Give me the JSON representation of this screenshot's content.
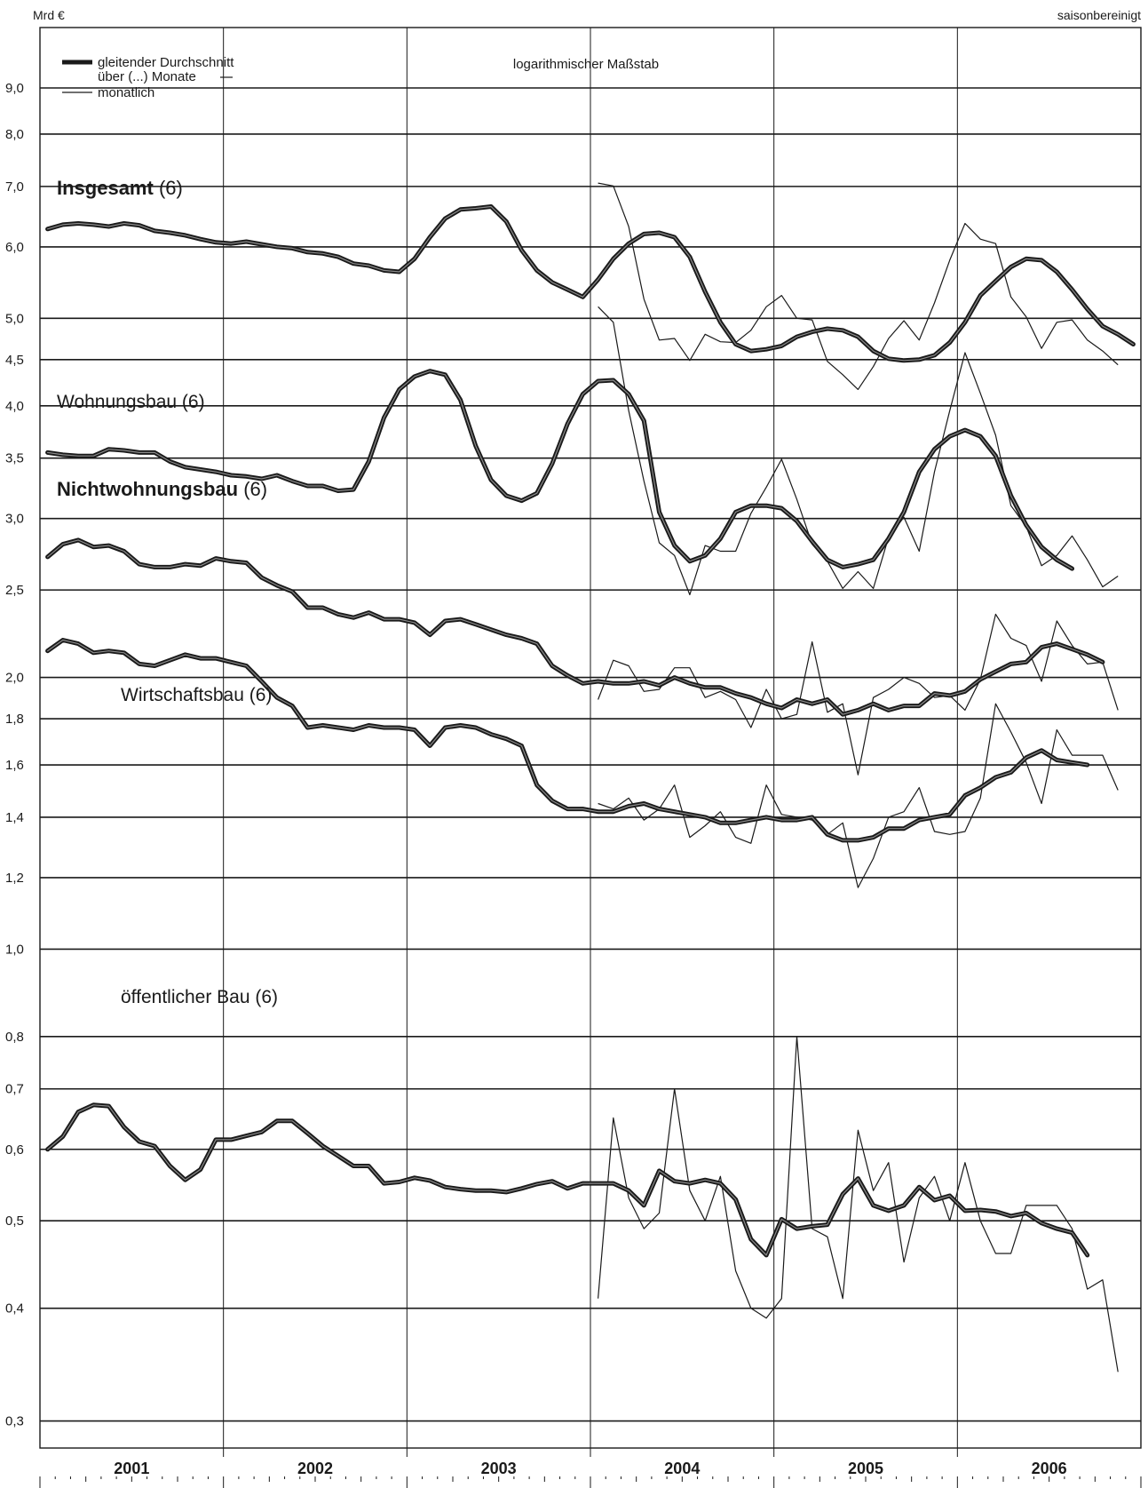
{
  "chart_data": {
    "type": "line",
    "y_unit_label": "Mrd €",
    "top_right_label": "saisonbereinigt",
    "scale_note": "logarithmischer Maßstab",
    "yscale": "log",
    "ylim": [
      0.28,
      10.5
    ],
    "y_ticks": [
      {
        "value": 0.3,
        "label": "0,3"
      },
      {
        "value": 0.4,
        "label": "0,4"
      },
      {
        "value": 0.5,
        "label": "0,5"
      },
      {
        "value": 0.6,
        "label": "0,6"
      },
      {
        "value": 0.7,
        "label": "0,7"
      },
      {
        "value": 0.8,
        "label": "0,8"
      },
      {
        "value": 1.0,
        "label": "1,0"
      },
      {
        "value": 1.2,
        "label": "1,2"
      },
      {
        "value": 1.4,
        "label": "1,4"
      },
      {
        "value": 1.6,
        "label": "1,6"
      },
      {
        "value": 1.8,
        "label": "1,8"
      },
      {
        "value": 2.0,
        "label": "2,0"
      },
      {
        "value": 2.5,
        "label": "2,5"
      },
      {
        "value": 3.0,
        "label": "3,0"
      },
      {
        "value": 3.5,
        "label": "3,5"
      },
      {
        "value": 4.0,
        "label": "4,0"
      },
      {
        "value": 4.5,
        "label": "4,5"
      },
      {
        "value": 5.0,
        "label": "5,0"
      },
      {
        "value": 6.0,
        "label": "6,0"
      },
      {
        "value": 7.0,
        "label": "7,0"
      },
      {
        "value": 8.0,
        "label": "8,0"
      },
      {
        "value": 9.0,
        "label": "9,0"
      }
    ],
    "years": [
      "2001",
      "2002",
      "2003",
      "2004",
      "2005",
      "2006"
    ],
    "x_start": "2001-01",
    "x_end": "2006-12",
    "legend": {
      "avg_line1": "gleitender Durchschnitt",
      "avg_line2": "über (...) Monate",
      "monthly": "monatlich"
    },
    "series": [
      {
        "name": "Insgesamt",
        "name_suffix": "(6)",
        "label_bold": true,
        "moving_average": {
          "start": "2001-01",
          "values": [
            6.28,
            6.35,
            6.37,
            6.35,
            6.32,
            6.37,
            6.34,
            6.25,
            6.22,
            6.18,
            6.12,
            6.07,
            6.05,
            6.08,
            6.04,
            6.0,
            5.98,
            5.92,
            5.9,
            5.85,
            5.75,
            5.72,
            5.65,
            5.63,
            5.82,
            6.15,
            6.45,
            6.6,
            6.62,
            6.65,
            6.4,
            5.95,
            5.65,
            5.48,
            5.38,
            5.28,
            5.52,
            5.82,
            6.05,
            6.2,
            6.22,
            6.15,
            5.85,
            5.35,
            4.95,
            4.68,
            4.6,
            4.62,
            4.66,
            4.77,
            4.83,
            4.87,
            4.85,
            4.77,
            4.6,
            4.51,
            4.49,
            4.5,
            4.55,
            4.7,
            4.95,
            5.3,
            5.5,
            5.7,
            5.82,
            5.8,
            5.63,
            5.38,
            5.12,
            4.9,
            4.8,
            4.68
          ]
        },
        "monthly": {
          "start": "2004-01",
          "values": [
            7.06,
            7.01,
            6.32,
            5.25,
            4.73,
            4.75,
            4.49,
            4.8,
            4.71,
            4.7,
            4.85,
            5.15,
            5.3,
            5.0,
            4.98,
            4.48,
            4.33,
            4.17,
            4.42,
            4.75,
            4.97,
            4.73,
            5.2,
            5.8,
            6.37,
            6.12,
            6.05,
            5.28,
            5.02,
            4.63,
            4.95,
            4.98,
            4.73,
            4.6,
            4.44
          ]
        }
      },
      {
        "name": "Wohnungsbau",
        "name_suffix": "(6)",
        "label_bold": false,
        "moving_average": {
          "start": "2001-01",
          "values": [
            3.55,
            3.53,
            3.52,
            3.52,
            3.58,
            3.57,
            3.55,
            3.55,
            3.47,
            3.42,
            3.4,
            3.38,
            3.35,
            3.34,
            3.32,
            3.35,
            3.3,
            3.26,
            3.26,
            3.22,
            3.23,
            3.47,
            3.88,
            4.17,
            4.31,
            4.37,
            4.33,
            4.06,
            3.61,
            3.31,
            3.18,
            3.14,
            3.2,
            3.45,
            3.82,
            4.12,
            4.26,
            4.27,
            4.12,
            3.85,
            3.05,
            2.8,
            2.69,
            2.73,
            2.85,
            3.05,
            3.1,
            3.1,
            3.08,
            2.98,
            2.83,
            2.7,
            2.65,
            2.67,
            2.7,
            2.85,
            3.05,
            3.38,
            3.58,
            3.7,
            3.76,
            3.7,
            3.52,
            3.18,
            2.95,
            2.79,
            2.7,
            2.64
          ]
        },
        "monthly": {
          "start": "2004-01",
          "values": [
            5.15,
            4.95,
            3.95,
            3.3,
            2.82,
            2.73,
            2.47,
            2.8,
            2.76,
            2.76,
            3.04,
            3.25,
            3.49,
            3.15,
            2.81,
            2.69,
            2.51,
            2.62,
            2.51,
            2.86,
            3.01,
            2.76,
            3.38,
            3.95,
            4.58,
            4.13,
            3.71,
            3.1,
            2.94,
            2.66,
            2.73,
            2.87,
            2.7,
            2.52,
            2.59
          ]
        }
      },
      {
        "name": "Nichtwohnungsbau",
        "name_suffix": "(6)",
        "label_bold": true,
        "moving_average": {
          "start": "2001-01",
          "values": [
            2.72,
            2.81,
            2.84,
            2.79,
            2.8,
            2.76,
            2.67,
            2.65,
            2.65,
            2.67,
            2.66,
            2.71,
            2.69,
            2.68,
            2.58,
            2.53,
            2.49,
            2.39,
            2.39,
            2.35,
            2.33,
            2.36,
            2.32,
            2.32,
            2.3,
            2.23,
            2.31,
            2.32,
            2.29,
            2.26,
            2.23,
            2.21,
            2.18,
            2.06,
            2.01,
            1.97,
            1.98,
            1.97,
            1.97,
            1.98,
            1.96,
            2.0,
            1.97,
            1.95,
            1.95,
            1.92,
            1.9,
            1.87,
            1.85,
            1.89,
            1.87,
            1.89,
            1.82,
            1.84,
            1.87,
            1.84,
            1.86,
            1.86,
            1.92,
            1.91,
            1.93,
            1.99,
            2.03,
            2.07,
            2.08,
            2.16,
            2.18,
            2.15,
            2.12,
            2.08
          ]
        },
        "monthly": {
          "start": "2004-01",
          "values": [
            1.89,
            2.09,
            2.06,
            1.93,
            1.94,
            2.05,
            2.05,
            1.9,
            1.93,
            1.89,
            1.76,
            1.94,
            1.8,
            1.82,
            2.19,
            1.83,
            1.87,
            1.56,
            1.9,
            1.94,
            2.0,
            1.97,
            1.9,
            1.91,
            1.84,
            1.99,
            2.35,
            2.21,
            2.17,
            1.98,
            2.31,
            2.17,
            2.07,
            2.08,
            1.84
          ]
        }
      },
      {
        "name": "Wirtschaftsbau",
        "name_suffix": "(6)",
        "label_bold": false,
        "moving_average": {
          "start": "2001-01",
          "values": [
            2.14,
            2.2,
            2.18,
            2.13,
            2.14,
            2.13,
            2.07,
            2.06,
            2.09,
            2.12,
            2.1,
            2.1,
            2.08,
            2.06,
            1.98,
            1.9,
            1.86,
            1.76,
            1.77,
            1.76,
            1.75,
            1.77,
            1.76,
            1.76,
            1.75,
            1.68,
            1.76,
            1.77,
            1.76,
            1.73,
            1.71,
            1.68,
            1.52,
            1.46,
            1.43,
            1.43,
            1.42,
            1.42,
            1.44,
            1.45,
            1.43,
            1.42,
            1.41,
            1.4,
            1.38,
            1.38,
            1.39,
            1.4,
            1.39,
            1.39,
            1.4,
            1.34,
            1.32,
            1.32,
            1.33,
            1.36,
            1.36,
            1.39,
            1.4,
            1.41,
            1.48,
            1.51,
            1.55,
            1.57,
            1.63,
            1.66,
            1.62,
            1.61,
            1.6
          ]
        },
        "monthly": {
          "start": "2004-01",
          "values": [
            1.45,
            1.43,
            1.47,
            1.39,
            1.43,
            1.52,
            1.33,
            1.37,
            1.42,
            1.33,
            1.31,
            1.52,
            1.41,
            1.4,
            1.39,
            1.34,
            1.38,
            1.17,
            1.26,
            1.4,
            1.42,
            1.51,
            1.35,
            1.34,
            1.35,
            1.47,
            1.87,
            1.74,
            1.61,
            1.45,
            1.75,
            1.64,
            1.64,
            1.64,
            1.5
          ]
        }
      },
      {
        "name": "öffentlicher Bau",
        "name_suffix": "(6)",
        "label_bold": false,
        "moving_average": {
          "start": "2001-01",
          "values": [
            0.6,
            0.62,
            0.66,
            0.672,
            0.67,
            0.635,
            0.612,
            0.605,
            0.575,
            0.555,
            0.57,
            0.615,
            0.615,
            0.621,
            0.627,
            0.645,
            0.645,
            0.625,
            0.605,
            0.59,
            0.575,
            0.575,
            0.55,
            0.552,
            0.558,
            0.554,
            0.545,
            0.542,
            0.54,
            0.54,
            0.538,
            0.543,
            0.549,
            0.553,
            0.543,
            0.55,
            0.55,
            0.55,
            0.54,
            0.52,
            0.568,
            0.553,
            0.55,
            0.555,
            0.55,
            0.528,
            0.477,
            0.458,
            0.502,
            0.49,
            0.493,
            0.495,
            0.535,
            0.557,
            0.52,
            0.513,
            0.52,
            0.545,
            0.527,
            0.533,
            0.513,
            0.514,
            0.512,
            0.506,
            0.51,
            0.497,
            0.49,
            0.485,
            0.458
          ]
        },
        "monthly": {
          "start": "2004-01",
          "values": [
            0.41,
            0.65,
            0.53,
            0.49,
            0.51,
            0.7,
            0.54,
            0.5,
            0.56,
            0.44,
            0.4,
            0.39,
            0.41,
            0.8,
            0.49,
            0.48,
            0.41,
            0.63,
            0.54,
            0.58,
            0.45,
            0.53,
            0.56,
            0.5,
            0.58,
            0.5,
            0.46,
            0.46,
            0.52,
            0.52,
            0.52,
            0.49,
            0.42,
            0.43,
            0.34
          ]
        }
      }
    ]
  }
}
